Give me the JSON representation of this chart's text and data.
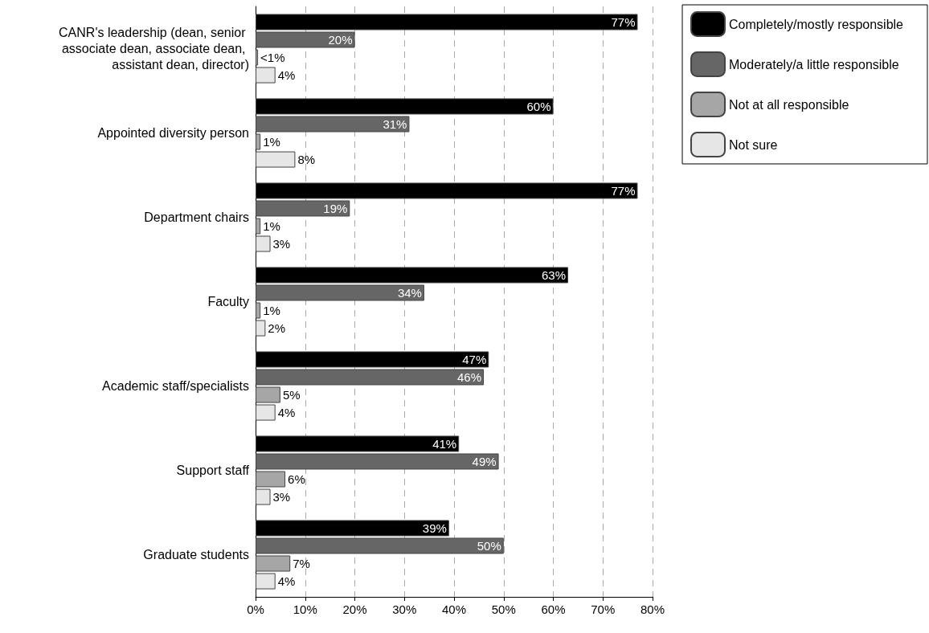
{
  "chart_data": {
    "type": "bar",
    "orientation": "horizontal",
    "categories": [
      "CANR's leadership (dean, senior associate dean, associate dean, assistant dean, director)",
      "Appointed diversity person",
      "Department chairs",
      "Faculty",
      "Academic staff/specialists",
      "Support staff",
      "Graduate students"
    ],
    "series": [
      {
        "name": "Completely/mostly responsible",
        "color": "#000000",
        "values": [
          77,
          60,
          77,
          63,
          47,
          41,
          39
        ],
        "value_labels": [
          "77%",
          "60%",
          "77%",
          "63%",
          "47%",
          "41%",
          "39%"
        ]
      },
      {
        "name": "Moderately/a little responsible",
        "color": "#666666",
        "values": [
          20,
          31,
          19,
          34,
          46,
          49,
          50
        ],
        "value_labels": [
          "20%",
          "31%",
          "19%",
          "34%",
          "46%",
          "49%",
          "50%"
        ]
      },
      {
        "name": "Not at all responsible",
        "color": "#a6a6a6",
        "values": [
          0.5,
          1,
          1,
          1,
          5,
          6,
          7
        ],
        "value_labels": [
          "<1%",
          "1%",
          "1%",
          "1%",
          "5%",
          "6%",
          "7%"
        ]
      },
      {
        "name": "Not sure",
        "color": "#e6e6e6",
        "values": [
          4,
          8,
          3,
          2,
          4,
          3,
          4
        ],
        "value_labels": [
          "4%",
          "8%",
          "3%",
          "2%",
          "4%",
          "3%",
          "4%"
        ]
      }
    ],
    "xlim": [
      0,
      80
    ],
    "xticks": [
      {
        "value": 0,
        "label": "0%"
      },
      {
        "value": 10,
        "label": "10%"
      },
      {
        "value": 20,
        "label": "20%"
      },
      {
        "value": 30,
        "label": "30%"
      },
      {
        "value": 40,
        "label": "40%"
      },
      {
        "value": 50,
        "label": "50%"
      },
      {
        "value": 60,
        "label": "60%"
      },
      {
        "value": 70,
        "label": "70%"
      },
      {
        "value": 80,
        "label": "80%"
      }
    ],
    "grid": "x",
    "legend": "top right"
  }
}
